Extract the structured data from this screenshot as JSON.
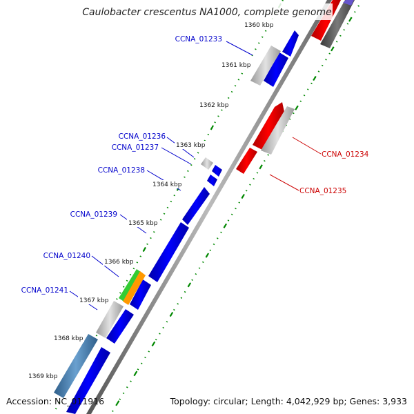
{
  "title": "Caulobacter crescentus NA1000, complete genome",
  "footer": {
    "accession": "Accession: NC_011916",
    "summary": "Topology: circular; Length: 4,042,929 bp; Genes: 3,933"
  },
  "ticks": [
    "1360 kbp",
    "1361 kbp",
    "1362 kbp",
    "1363 kbp",
    "1364 kbp",
    "1365 kbp",
    "1366 kbp",
    "1367 kbp",
    "1368 kbp",
    "1369 kbp"
  ],
  "gene_labels": [
    {
      "name": "CCNA_01233",
      "strand": "forward"
    },
    {
      "name": "CCNA_01234",
      "strand": "reverse"
    },
    {
      "name": "CCNA_01235",
      "strand": "reverse"
    },
    {
      "name": "CCNA_01236",
      "strand": "forward"
    },
    {
      "name": "CCNA_01237",
      "strand": "forward"
    },
    {
      "name": "CCNA_01238",
      "strand": "forward"
    },
    {
      "name": "CCNA_01239",
      "strand": "forward"
    },
    {
      "name": "CCNA_01240",
      "strand": "forward"
    },
    {
      "name": "CCNA_01241",
      "strand": "forward"
    }
  ],
  "colors": {
    "forward_label": "#0000cc",
    "reverse_label": "#cc0000",
    "forward_cds": "#0000ee",
    "reverse_cds": "#ee0000",
    "gray_feature": "#c8c8c8",
    "dark_feature": "#555555",
    "green_feature": "#33cc33",
    "orange_feature": "#ff9900",
    "steelblue_feature": "#4682b4",
    "backbone": "#888888",
    "tick_green": "#008800"
  }
}
